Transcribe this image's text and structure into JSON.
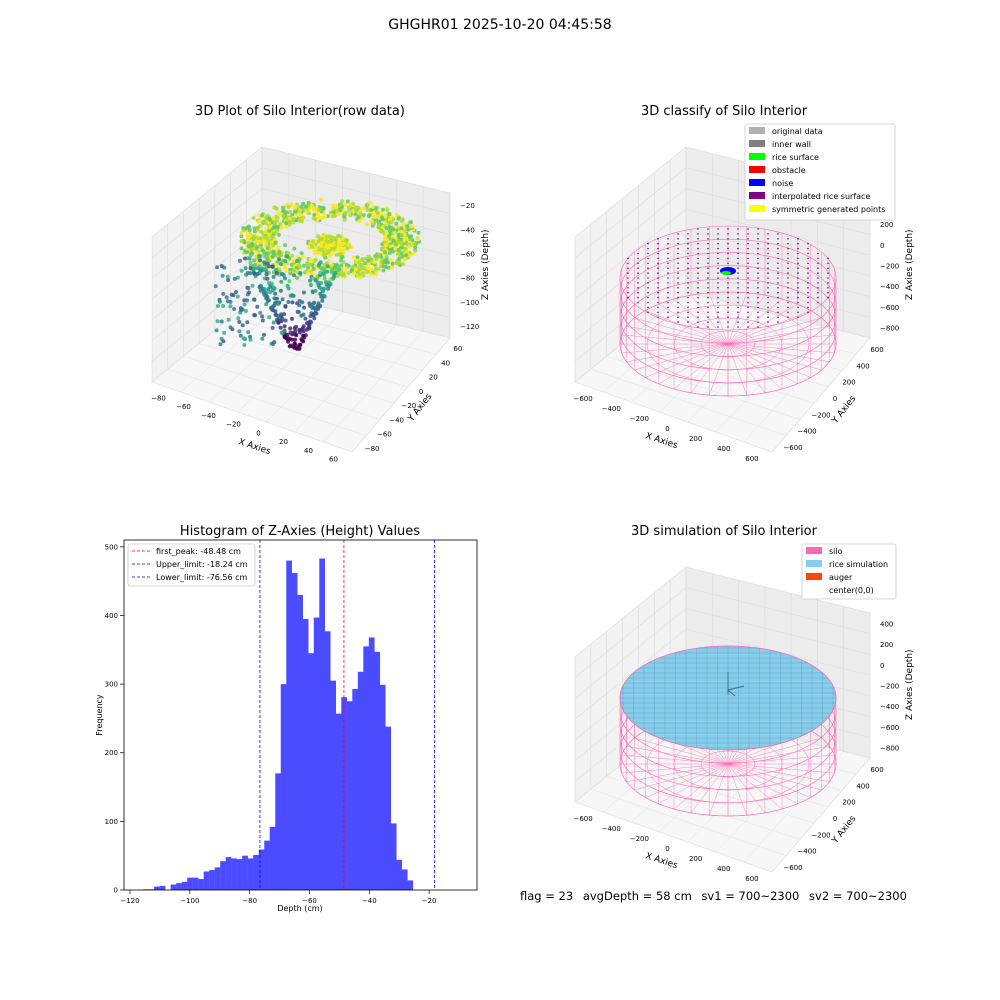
{
  "page_title": "GHGHR01 2025-10-20 04:45:58",
  "footer": {
    "flag": "flag = 23",
    "avg_depth": "avgDepth = 58 cm",
    "sv1": "sv1 = 700~2300",
    "sv2": "sv2 = 700~2300"
  },
  "chart_data": [
    {
      "type": "scatter",
      "title": "3D Plot of Silo Interior(row data)",
      "xlabel": "X Axies",
      "ylabel": "Y Axies",
      "zlabel": "Z Axies (Depth)",
      "x_ticks": [
        "−80",
        "−60",
        "−40",
        "−20",
        "0",
        "20",
        "40",
        "60"
      ],
      "y_ticks": [
        "−80",
        "−60",
        "−40",
        "−20",
        "0",
        "20",
        "40",
        "60"
      ],
      "z_ticks": [
        "−20",
        "−40",
        "−60",
        "−80",
        "−100",
        "−120"
      ],
      "colormap": "viridis"
    },
    {
      "type": "scatter",
      "title": "3D classify of Silo Interior",
      "xlabel": "X Axies",
      "ylabel": "Y Axies",
      "zlabel": "Z Axies (Depth)",
      "x_ticks": [
        "−600",
        "−400",
        "−200",
        "0",
        "200",
        "400",
        "600"
      ],
      "y_ticks": [
        "−600",
        "−400",
        "−200",
        "0",
        "200",
        "400",
        "600"
      ],
      "z_ticks": [
        "400",
        "200",
        "0",
        "−200",
        "−400",
        "−600",
        "−800"
      ],
      "legend_position": "top-right",
      "legend": [
        {
          "label": "original data",
          "color": "#b0b0b0"
        },
        {
          "label": "inner wall",
          "color": "#808080"
        },
        {
          "label": "rice surface",
          "color": "#00ff00"
        },
        {
          "label": "obstacle",
          "color": "#ff0000"
        },
        {
          "label": "noise",
          "color": "#0000ff"
        },
        {
          "label": "interpolated rice surface",
          "color": "#800080"
        },
        {
          "label": "symmetric generated points",
          "color": "#ffff00"
        }
      ]
    },
    {
      "type": "bar",
      "title": "Histogram of Z-Axies (Height) Values",
      "xlabel": "Depth (cm)",
      "ylabel": "Frequency",
      "xlim": [
        -122,
        -4
      ],
      "ylim": [
        0,
        510
      ],
      "x_ticks": [
        -120,
        -100,
        -80,
        -60,
        -40,
        -20
      ],
      "y_ticks": [
        0,
        100,
        200,
        300,
        400,
        500
      ],
      "bar_color": "#4b4bff",
      "bin_start": -115.6,
      "bin_width": 1.84,
      "values": [
        1,
        1,
        5,
        6,
        0,
        8,
        10,
        12,
        18,
        18,
        16,
        27,
        29,
        33,
        42,
        48,
        46,
        45,
        50,
        46,
        51,
        59,
        72,
        92,
        170,
        300,
        480,
        462,
        430,
        395,
        345,
        397,
        483,
        377,
        305,
        257,
        281,
        275,
        293,
        318,
        355,
        368,
        347,
        299,
        238,
        97,
        44,
        30,
        14
      ],
      "legend_position": "top-left",
      "vlines": [
        {
          "label": "first_peak: -48.48 cm",
          "x": -48.48,
          "color": "#ff0000"
        },
        {
          "label": "Upper_limit: -18.24 cm",
          "x": -18.24,
          "color": "#0000ff"
        },
        {
          "label": "Lower_limit: -76.56 cm",
          "x": -76.56,
          "color": "#0000ff"
        }
      ]
    },
    {
      "type": "other",
      "title": "3D simulation of Silo Interior",
      "xlabel": "X Axies",
      "ylabel": "Y Axies",
      "zlabel": "Z Axies (Depth)",
      "x_ticks": [
        "−600",
        "−400",
        "−200",
        "0",
        "200",
        "400",
        "600"
      ],
      "y_ticks": [
        "−600",
        "−400",
        "−200",
        "0",
        "200",
        "400",
        "600"
      ],
      "z_ticks": [
        "400",
        "200",
        "0",
        "−200",
        "−400",
        "−600",
        "−800"
      ],
      "legend_position": "top-right",
      "legend": [
        {
          "label": "silo",
          "color": "#ff69b4"
        },
        {
          "label": "rice simulation",
          "color": "#87ceeb"
        },
        {
          "label": "auger",
          "color": "#ff4500"
        },
        {
          "label": "center(0,0)",
          "color": "#ffffff"
        }
      ]
    }
  ]
}
